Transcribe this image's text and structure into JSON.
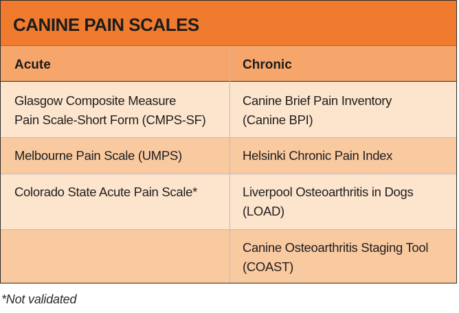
{
  "title": "CANINE PAIN SCALES",
  "headers": {
    "acute": "Acute",
    "chronic": "Chronic"
  },
  "rows": [
    {
      "acute": [
        "Glasgow Composite Measure",
        "Pain Scale-Short Form (CMPS-SF)"
      ],
      "chronic": [
        "Canine Brief Pain Inventory",
        "(Canine BPI)"
      ]
    },
    {
      "acute": [
        "Melbourne Pain Scale (UMPS)"
      ],
      "chronic": [
        "Helsinki Chronic Pain Index"
      ]
    },
    {
      "acute": [
        "Colorado State Acute Pain Scale*"
      ],
      "chronic": [
        "Liverpool Osteoarthritis in Dogs",
        "(LOAD)"
      ]
    },
    {
      "acute": [],
      "chronic": [
        "Canine Osteoarthritis Staging Tool",
        "(COAST)"
      ]
    }
  ],
  "footnote": "*Not validated",
  "colors": {
    "title_bg": "#f07b2f",
    "header_bg": "#f6a56b",
    "row_light": "#fde4cd",
    "row_dark": "#f9c9a0"
  }
}
